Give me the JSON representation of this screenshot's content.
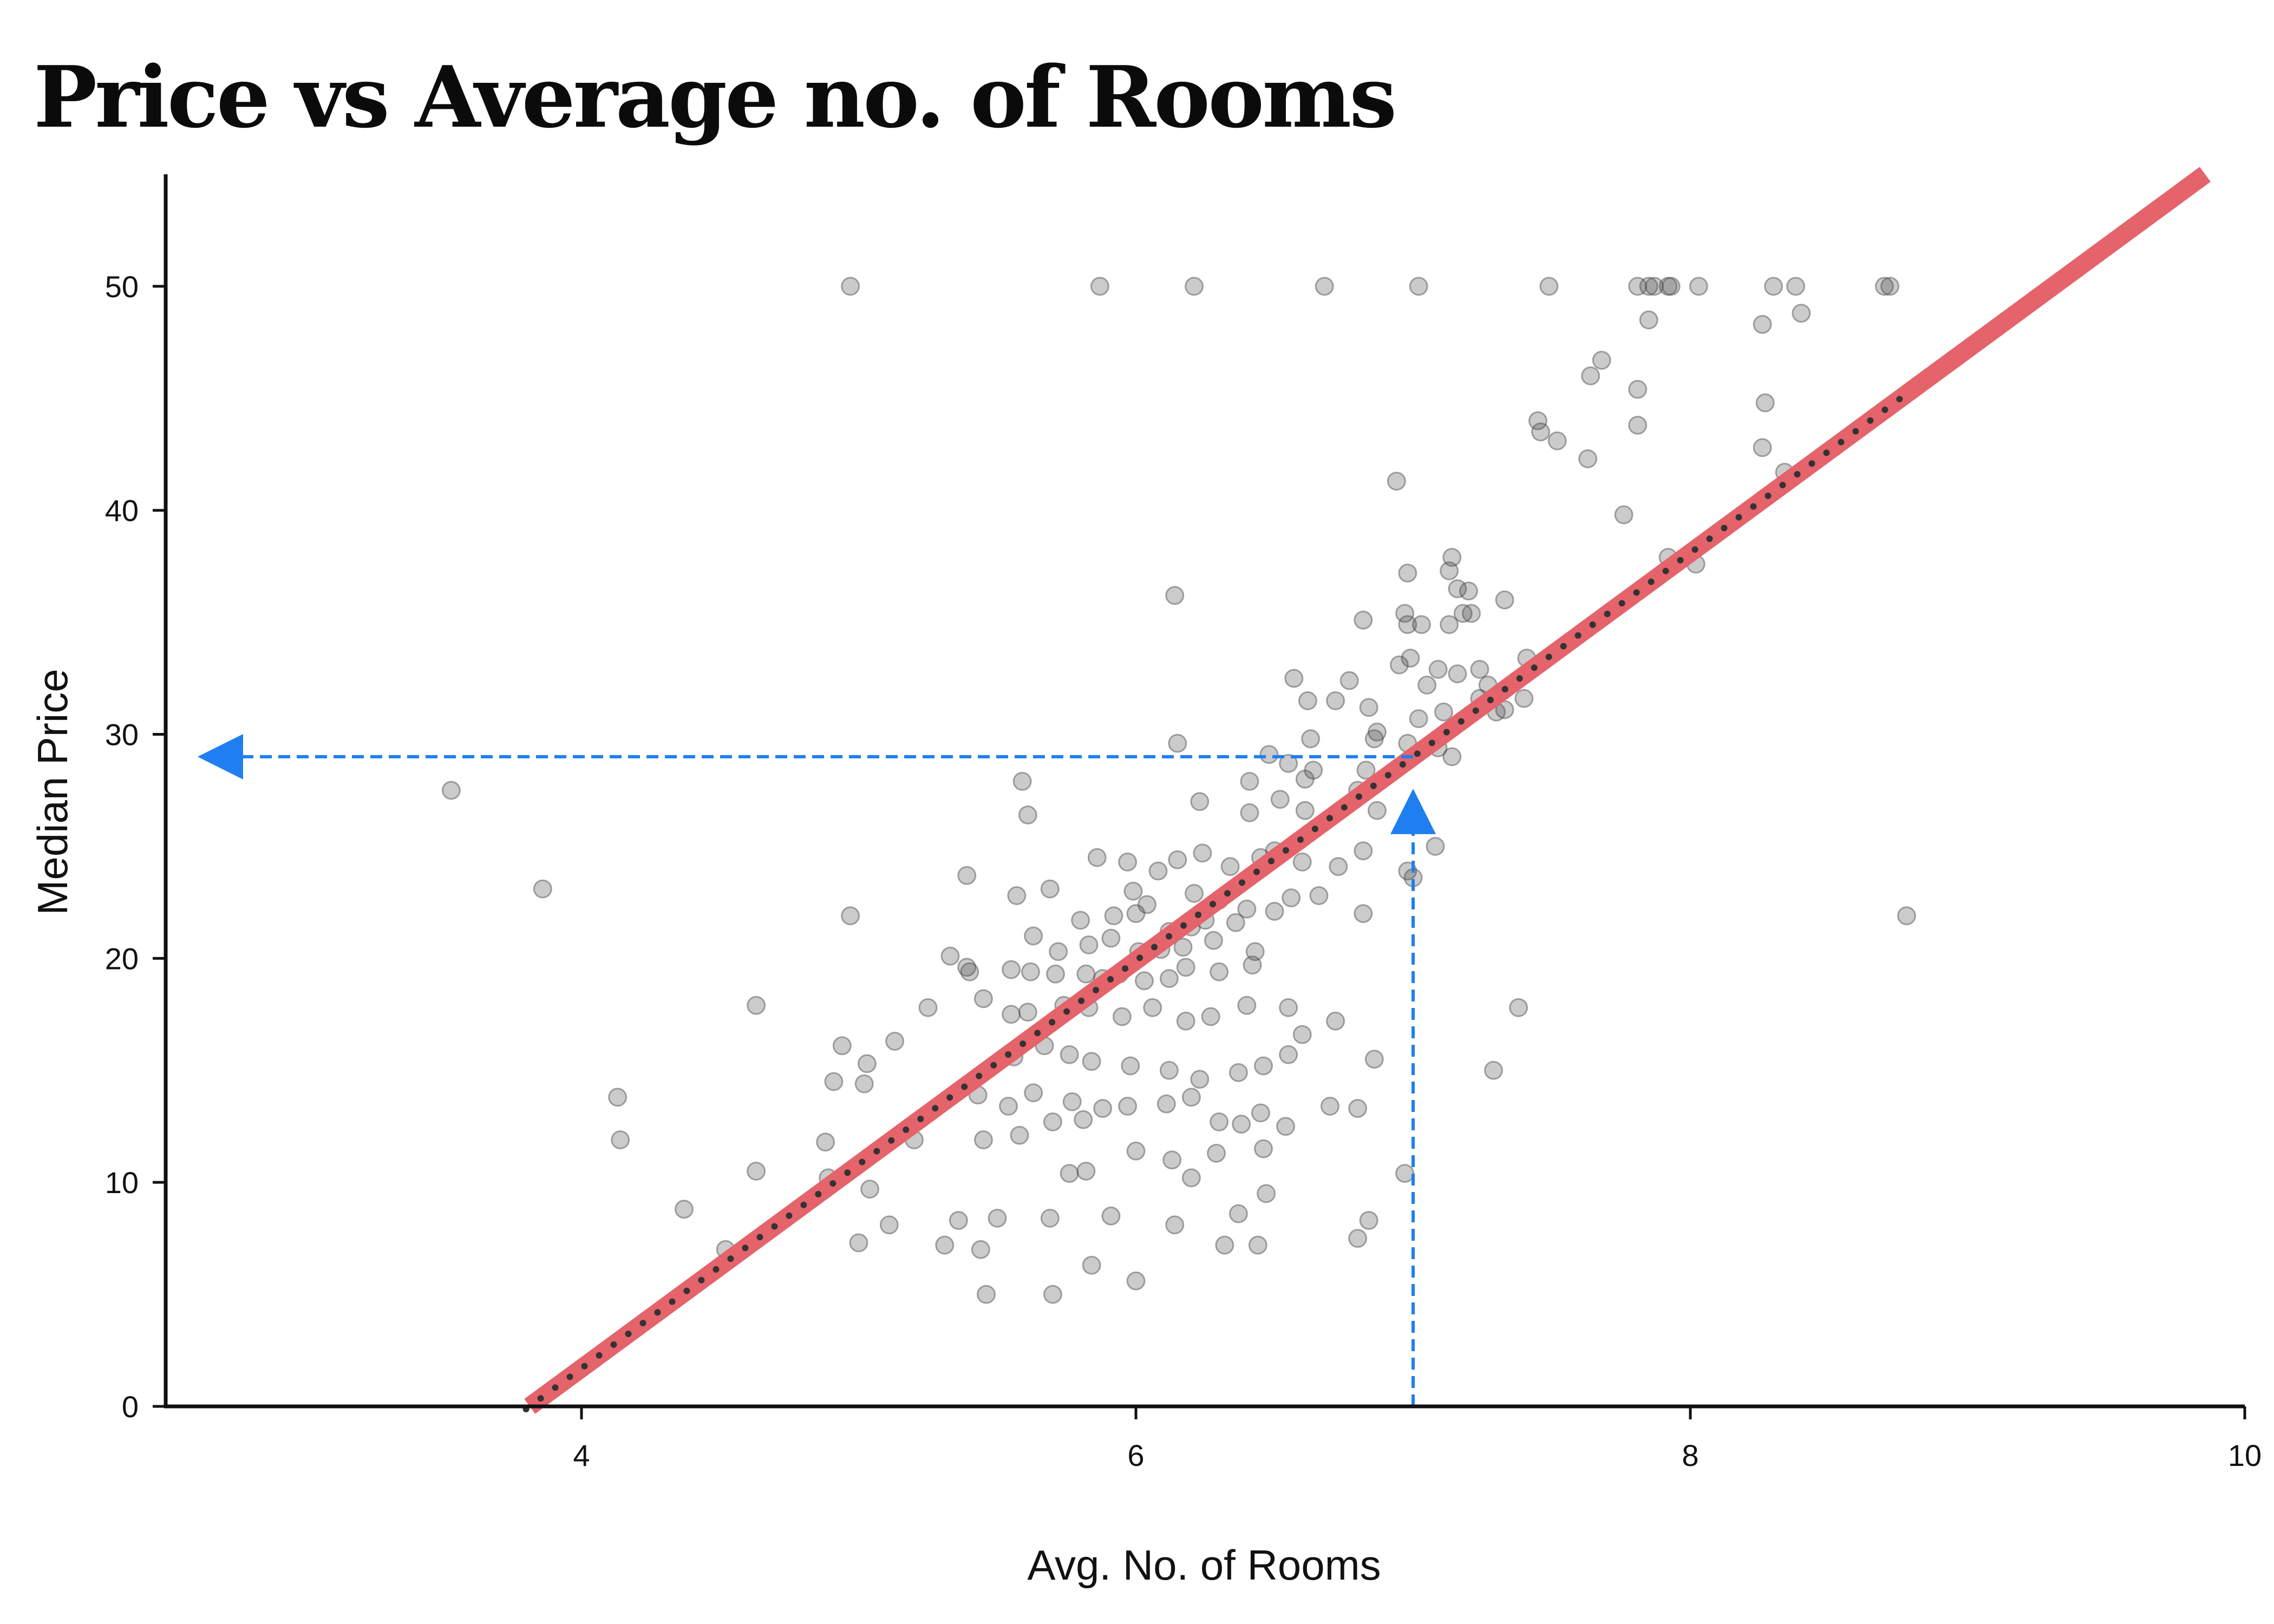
{
  "chart_data": {
    "type": "scatter",
    "title": "Price vs Average no. of Rooms",
    "xlabel": "Avg. No. of Rooms",
    "ylabel": "Median Price",
    "xlim": [
      2.5,
      10
    ],
    "ylim": [
      0,
      55
    ],
    "x_ticks": [
      "4",
      "6",
      "8",
      "10"
    ],
    "y_ticks": [
      "0",
      "10",
      "20",
      "30",
      "40",
      "50"
    ],
    "grid": false,
    "legend": "none",
    "colors": {
      "points": "#444444",
      "fit_line": "#e5636b",
      "fit_dots": "#333333",
      "guide": "#1f7ff0",
      "axis": "#111111"
    },
    "regression": {
      "slope": 9.1,
      "intercept": -34.7,
      "x_range": [
        3.8,
        8.8
      ]
    },
    "highlight": {
      "x": 7.0,
      "y": 29.0
    },
    "points": [
      [
        4.97,
        50
      ],
      [
        5.87,
        50
      ],
      [
        6.21,
        50
      ],
      [
        6.68,
        50
      ],
      [
        7.02,
        50
      ],
      [
        7.49,
        50
      ],
      [
        7.81,
        50
      ],
      [
        7.85,
        50
      ],
      [
        7.87,
        50
      ],
      [
        7.92,
        50
      ],
      [
        7.93,
        50
      ],
      [
        8.03,
        50
      ],
      [
        8.3,
        50
      ],
      [
        8.38,
        50
      ],
      [
        8.7,
        50
      ],
      [
        8.72,
        50
      ],
      [
        8.26,
        48.3
      ],
      [
        8.4,
        48.8
      ],
      [
        7.85,
        48.5
      ],
      [
        7.68,
        46.7
      ],
      [
        7.64,
        46.0
      ],
      [
        7.81,
        45.4
      ],
      [
        8.27,
        44.8
      ],
      [
        7.45,
        44.0
      ],
      [
        7.46,
        43.5
      ],
      [
        7.52,
        43.1
      ],
      [
        7.81,
        43.8
      ],
      [
        8.26,
        42.8
      ],
      [
        7.63,
        42.3
      ],
      [
        8.34,
        41.7
      ],
      [
        6.94,
        41.3
      ],
      [
        7.76,
        39.8
      ],
      [
        8.02,
        37.6
      ],
      [
        7.14,
        37.9
      ],
      [
        7.13,
        37.3
      ],
      [
        7.92,
        37.9
      ],
      [
        6.98,
        37.2
      ],
      [
        7.16,
        36.5
      ],
      [
        6.14,
        36.2
      ],
      [
        7.2,
        36.4
      ],
      [
        7.33,
        36.0
      ],
      [
        7.18,
        35.4
      ],
      [
        7.21,
        35.4
      ],
      [
        6.97,
        35.4
      ],
      [
        7.13,
        34.9
      ],
      [
        6.82,
        35.1
      ],
      [
        6.98,
        34.9
      ],
      [
        7.03,
        34.9
      ],
      [
        7.41,
        33.4
      ],
      [
        7.24,
        32.9
      ],
      [
        6.99,
        33.4
      ],
      [
        7.16,
        32.7
      ],
      [
        7.27,
        32.2
      ],
      [
        6.57,
        32.5
      ],
      [
        6.77,
        32.4
      ],
      [
        6.95,
        33.1
      ],
      [
        7.09,
        32.9
      ],
      [
        7.05,
        32.2
      ],
      [
        7.24,
        31.6
      ],
      [
        7.4,
        31.6
      ],
      [
        6.84,
        31.2
      ],
      [
        6.62,
        31.5
      ],
      [
        6.72,
        31.5
      ],
      [
        7.11,
        31.0
      ],
      [
        7.33,
        31.1
      ],
      [
        7.02,
        30.7
      ],
      [
        6.87,
        30.1
      ],
      [
        6.63,
        29.8
      ],
      [
        6.48,
        29.1
      ],
      [
        6.86,
        29.8
      ],
      [
        6.15,
        29.6
      ],
      [
        6.98,
        29.6
      ],
      [
        7.09,
        29.4
      ],
      [
        7.14,
        29.0
      ],
      [
        6.55,
        28.7
      ],
      [
        6.64,
        28.4
      ],
      [
        6.61,
        28.0
      ],
      [
        6.83,
        28.4
      ],
      [
        6.41,
        27.9
      ],
      [
        5.59,
        27.9
      ],
      [
        6.52,
        27.1
      ],
      [
        6.23,
        27.0
      ],
      [
        5.61,
        26.4
      ],
      [
        6.61,
        26.6
      ],
      [
        6.41,
        26.5
      ],
      [
        6.8,
        27.5
      ],
      [
        6.87,
        26.6
      ],
      [
        7.08,
        25.0
      ],
      [
        6.98,
        23.9
      ],
      [
        7.0,
        23.6
      ],
      [
        6.82,
        22.0
      ],
      [
        3.53,
        27.5
      ],
      [
        3.86,
        23.1
      ],
      [
        4.97,
        21.9
      ],
      [
        5.39,
        23.7
      ],
      [
        5.57,
        22.8
      ],
      [
        5.69,
        23.1
      ],
      [
        5.86,
        24.5
      ],
      [
        5.97,
        24.3
      ],
      [
        6.08,
        23.9
      ],
      [
        6.15,
        24.4
      ],
      [
        6.24,
        24.7
      ],
      [
        6.34,
        24.1
      ],
      [
        6.45,
        24.5
      ],
      [
        6.5,
        24.8
      ],
      [
        6.6,
        24.3
      ],
      [
        6.73,
        24.1
      ],
      [
        6.82,
        24.8
      ],
      [
        5.99,
        23.0
      ],
      [
        6.04,
        22.4
      ],
      [
        6.21,
        22.9
      ],
      [
        6.3,
        22.6
      ],
      [
        6.4,
        22.2
      ],
      [
        6.5,
        22.1
      ],
      [
        6.56,
        22.7
      ],
      [
        6.66,
        22.8
      ],
      [
        5.8,
        21.7
      ],
      [
        5.92,
        21.9
      ],
      [
        6.0,
        22.0
      ],
      [
        6.12,
        21.2
      ],
      [
        6.2,
        21.4
      ],
      [
        6.25,
        21.7
      ],
      [
        6.36,
        21.6
      ],
      [
        5.63,
        21.0
      ],
      [
        5.72,
        20.3
      ],
      [
        5.83,
        20.6
      ],
      [
        5.91,
        20.9
      ],
      [
        6.01,
        20.3
      ],
      [
        6.09,
        20.4
      ],
      [
        6.17,
        20.5
      ],
      [
        6.28,
        20.8
      ],
      [
        6.43,
        20.3
      ],
      [
        5.33,
        20.1
      ],
      [
        5.39,
        19.6
      ],
      [
        5.4,
        19.4
      ],
      [
        5.55,
        19.5
      ],
      [
        5.62,
        19.4
      ],
      [
        5.71,
        19.3
      ],
      [
        5.82,
        19.3
      ],
      [
        5.88,
        19.1
      ],
      [
        5.94,
        19.3
      ],
      [
        6.03,
        19.0
      ],
      [
        6.12,
        19.1
      ],
      [
        6.18,
        19.6
      ],
      [
        6.3,
        19.4
      ],
      [
        6.42,
        19.7
      ],
      [
        5.45,
        18.2
      ],
      [
        5.55,
        17.5
      ],
      [
        5.61,
        17.6
      ],
      [
        5.74,
        17.9
      ],
      [
        5.83,
        17.8
      ],
      [
        5.95,
        17.4
      ],
      [
        6.06,
        17.8
      ],
      [
        6.18,
        17.2
      ],
      [
        6.27,
        17.4
      ],
      [
        6.4,
        17.9
      ],
      [
        6.55,
        17.8
      ],
      [
        5.25,
        17.8
      ],
      [
        4.63,
        17.9
      ],
      [
        5.13,
        16.3
      ],
      [
        4.94,
        16.1
      ],
      [
        5.56,
        15.6
      ],
      [
        5.67,
        16.1
      ],
      [
        5.76,
        15.7
      ],
      [
        5.84,
        15.4
      ],
      [
        5.98,
        15.2
      ],
      [
        6.12,
        15.0
      ],
      [
        6.23,
        14.6
      ],
      [
        6.37,
        14.9
      ],
      [
        6.46,
        15.2
      ],
      [
        6.55,
        15.7
      ],
      [
        6.6,
        16.6
      ],
      [
        6.72,
        17.2
      ],
      [
        6.86,
        15.5
      ],
      [
        7.38,
        17.8
      ],
      [
        5.03,
        15.3
      ],
      [
        5.02,
        14.4
      ],
      [
        4.91,
        14.5
      ],
      [
        5.43,
        13.9
      ],
      [
        5.54,
        13.4
      ],
      [
        5.63,
        14.0
      ],
      [
        5.77,
        13.6
      ],
      [
        5.88,
        13.3
      ],
      [
        5.97,
        13.4
      ],
      [
        6.11,
        13.5
      ],
      [
        6.2,
        13.8
      ],
      [
        6.3,
        12.7
      ],
      [
        6.38,
        12.6
      ],
      [
        6.45,
        13.1
      ],
      [
        6.54,
        12.5
      ],
      [
        6.7,
        13.4
      ],
      [
        6.8,
        13.3
      ],
      [
        7.29,
        15.0
      ],
      [
        4.13,
        13.8
      ],
      [
        4.14,
        11.9
      ],
      [
        4.88,
        11.8
      ],
      [
        5.2,
        11.9
      ],
      [
        5.45,
        11.9
      ],
      [
        5.58,
        12.1
      ],
      [
        5.7,
        12.7
      ],
      [
        5.81,
        12.8
      ],
      [
        6.0,
        11.4
      ],
      [
        6.13,
        11.0
      ],
      [
        6.2,
        10.2
      ],
      [
        6.29,
        11.3
      ],
      [
        6.46,
        11.5
      ],
      [
        5.76,
        10.4
      ],
      [
        5.82,
        10.5
      ],
      [
        5.04,
        9.7
      ],
      [
        4.89,
        10.2
      ],
      [
        4.63,
        10.5
      ],
      [
        5.11,
        8.1
      ],
      [
        5.36,
        8.3
      ],
      [
        5.5,
        8.4
      ],
      [
        5.69,
        8.4
      ],
      [
        5.91,
        8.5
      ],
      [
        6.14,
        8.1
      ],
      [
        6.37,
        8.6
      ],
      [
        6.47,
        9.5
      ],
      [
        6.8,
        7.5
      ],
      [
        6.84,
        8.3
      ],
      [
        4.37,
        8.8
      ],
      [
        4.52,
        7.0
      ],
      [
        5.0,
        7.3
      ],
      [
        5.31,
        7.2
      ],
      [
        5.44,
        7.0
      ],
      [
        5.84,
        6.3
      ],
      [
        6.0,
        5.6
      ],
      [
        6.32,
        7.2
      ],
      [
        6.44,
        7.2
      ],
      [
        5.7,
        5.0
      ],
      [
        5.46,
        5.0
      ],
      [
        6.97,
        10.4
      ],
      [
        8.78,
        21.9
      ],
      [
        7.3,
        31.0
      ]
    ]
  }
}
